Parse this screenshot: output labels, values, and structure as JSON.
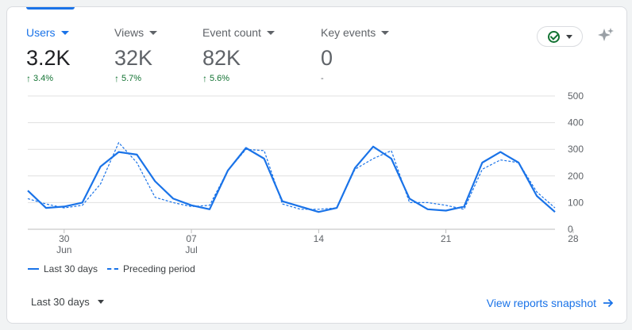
{
  "metrics": [
    {
      "label": "Users",
      "value": "3.2K",
      "change": "3.4%",
      "trend": "up",
      "active": true
    },
    {
      "label": "Views",
      "value": "32K",
      "change": "5.7%",
      "trend": "up",
      "active": false
    },
    {
      "label": "Event count",
      "value": "82K",
      "change": "5.6%",
      "trend": "up",
      "active": false
    },
    {
      "label": "Key events",
      "value": "0",
      "change": "-",
      "trend": "none",
      "active": false
    }
  ],
  "status": {
    "icon": "check-circle-icon",
    "color": "#137333"
  },
  "sparkle": {
    "icon": "sparkle-icon"
  },
  "legend": {
    "current": "Last 30 days",
    "previous": "Preceding period"
  },
  "footer": {
    "date_range": "Last 30 days",
    "link": "View reports snapshot"
  },
  "colors": {
    "accent": "#1a73e8",
    "positive": "#137333",
    "muted": "#5f6368"
  },
  "chart_data": {
    "type": "line",
    "y_ticks": [
      "0",
      "100",
      "200",
      "300",
      "400",
      "500"
    ],
    "x_ticks": [
      {
        "label": "30",
        "sub": "Jun",
        "index": 2
      },
      {
        "label": "07",
        "sub": "Jul",
        "index": 9
      },
      {
        "label": "14",
        "sub": "",
        "index": 16
      },
      {
        "label": "21",
        "sub": "",
        "index": 23
      },
      {
        "label": "28",
        "sub": "",
        "index": 30
      }
    ],
    "ylim": [
      0,
      500
    ],
    "grid": true,
    "legend_position": "bottom-left",
    "series": [
      {
        "name": "Last 30 days",
        "style": "solid",
        "values": [
          145,
          80,
          85,
          100,
          235,
          290,
          280,
          180,
          115,
          90,
          75,
          220,
          305,
          265,
          105,
          85,
          65,
          80,
          230,
          310,
          265,
          115,
          75,
          70,
          85,
          250,
          290,
          250,
          125,
          65
        ]
      },
      {
        "name": "Preceding period",
        "style": "dashed",
        "values": [
          115,
          95,
          80,
          90,
          170,
          325,
          250,
          120,
          100,
          85,
          90,
          220,
          300,
          295,
          95,
          75,
          75,
          80,
          225,
          265,
          295,
          100,
          100,
          90,
          75,
          225,
          260,
          250,
          140,
          80
        ]
      }
    ]
  }
}
